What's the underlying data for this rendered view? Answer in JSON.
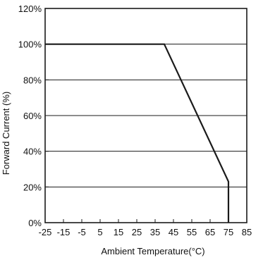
{
  "chart_data": {
    "type": "line",
    "title": "",
    "xlabel": "Ambient Temperature(°C)",
    "ylabel": "Forward Current (%)",
    "xlim": [
      -25,
      85
    ],
    "ylim": [
      0,
      120
    ],
    "x_ticks": [
      -25,
      -15,
      -5,
      5,
      15,
      25,
      35,
      45,
      55,
      65,
      75,
      85
    ],
    "y_ticks": [
      0,
      20,
      40,
      60,
      80,
      100,
      120
    ],
    "y_tick_format": "percent",
    "grid": "horizontal",
    "colors": {
      "line": "#1a1a1a",
      "axes": "#1a1a1a",
      "grid": "#1a1a1a"
    },
    "series": [
      {
        "x": [
          -25,
          40,
          75,
          75
        ],
        "y": [
          100,
          100,
          23,
          0
        ]
      }
    ]
  }
}
